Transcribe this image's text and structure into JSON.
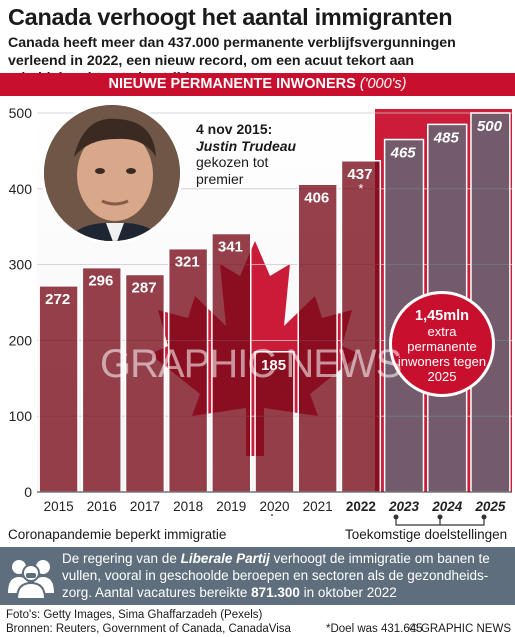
{
  "header": {
    "title": "Canada verhoogt het aantal immigranten",
    "subtitle": "Canada heeft meer dan 437.000 permanente verblijfsvergunningen verleend in 2022, een nieuw record, om een acuut tekort aan arbeidskrachten te bestrijden"
  },
  "ribbon": {
    "label": "NIEUWE PERMANENTE INWONERS",
    "unit": "('000's)"
  },
  "annotation": {
    "date": "4 nov 2015:",
    "name": "Justin Trudeau",
    "text": "gekozen tot premier"
  },
  "callout": {
    "big": "1,45mln",
    "text": "extra permanente inwoners tegen 2025"
  },
  "watermark": "GRAPHIC NEWS",
  "brackets": {
    "covid": "Coronapandemie beperkt immigratie",
    "targets": "Toekomstige doelstellingen"
  },
  "info": {
    "part1": "De regering van de ",
    "party": "Liberale Partij",
    "part2": " verhoogt de immigratie om banen te vullen, vooral in geschoolde beroepen en sectoren als de gezondheids-zorg. Aantal vacatures bereikte ",
    "vacancies": "871.300",
    "part3": " in oktober 2022"
  },
  "footer": {
    "photos": "Foto's: Getty Images, Sima Ghaffarzadeh (Pexels)",
    "sources": "Bronnen: Reuters, Government of Canada, CanadaVisa",
    "note": "*Doel was 431.645",
    "credit": "© GRAPHIC NEWS"
  },
  "colors": {
    "red": "#c8102e",
    "dark_red": "#6e0c14",
    "grey": "#5e6e7c",
    "target_grey": "#6d7580"
  },
  "chart_data": {
    "type": "bar",
    "categories": [
      "2015",
      "2016",
      "2017",
      "2018",
      "2019",
      "2020",
      "2021",
      "2022",
      "2023",
      "2024",
      "2025"
    ],
    "values": [
      272,
      296,
      287,
      321,
      341,
      185,
      406,
      437,
      465,
      485,
      500
    ],
    "value_labels": [
      "272",
      "296",
      "287",
      "321",
      "341",
      "185",
      "406",
      "437",
      "465",
      "485",
      "500"
    ],
    "bold_categories": [
      "2022",
      "2023",
      "2024",
      "2025"
    ],
    "target_categories": [
      "2023",
      "2024",
      "2025"
    ],
    "footnote_marker": {
      "category": "2022",
      "mark": "*"
    },
    "yticks": [
      0,
      100,
      200,
      300,
      400,
      500
    ],
    "ylim": [
      0,
      500
    ],
    "grid": true
  }
}
